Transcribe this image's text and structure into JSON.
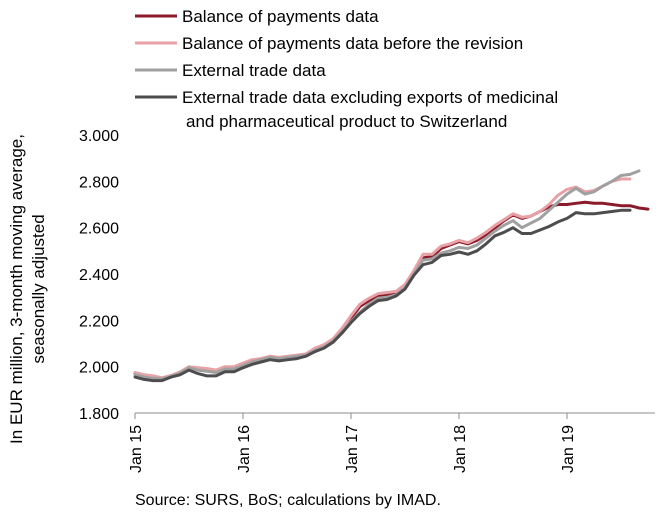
{
  "chart_data": {
    "type": "line",
    "title": "",
    "ylabel_lines": [
      "In EUR million, 3-month moving average,",
      "seasonally adjusted"
    ],
    "xlabel": "",
    "ylim": [
      1800,
      3000
    ],
    "y_ticks": [
      1800,
      2000,
      2200,
      2400,
      2600,
      2800,
      3000
    ],
    "y_tick_labels": [
      "1.800",
      "2.000",
      "2.200",
      "2.400",
      "2.600",
      "2.800",
      "3.000"
    ],
    "x_start": "2015-01",
    "x_end": "2019-10",
    "x_ticks": [
      {
        "label": "Jan 15",
        "index": 0
      },
      {
        "label": "Jan 16",
        "index": 12
      },
      {
        "label": "Jan 17",
        "index": 24
      },
      {
        "label": "Jan 18",
        "index": 36
      },
      {
        "label": "Jan 19",
        "index": 48
      }
    ],
    "grid": "horizontal",
    "legend_position": "top",
    "source": "Source: SURS, BoS; calculations by IMAD.",
    "series": [
      {
        "name": "Balance of payments data",
        "color": "#8B1A2B",
        "values": [
          1970,
          1960,
          1955,
          1950,
          1960,
          1975,
          1995,
          1990,
          1985,
          1980,
          1995,
          1995,
          2010,
          2025,
          2030,
          2040,
          2035,
          2040,
          2045,
          2050,
          2075,
          2090,
          2115,
          2160,
          2210,
          2260,
          2285,
          2305,
          2310,
          2315,
          2340,
          2400,
          2470,
          2475,
          2510,
          2525,
          2540,
          2530,
          2545,
          2570,
          2600,
          2630,
          2655,
          2640,
          2650,
          2670,
          2690,
          2700,
          2700,
          2705,
          2710,
          2705,
          2705,
          2700,
          2695,
          2695,
          2685,
          2680
        ]
      },
      {
        "name": "Balance of payments data before the revision",
        "color": "#E8A2A5",
        "values": [
          1975,
          1965,
          1960,
          1952,
          1962,
          1977,
          2000,
          1995,
          1992,
          1985,
          2000,
          2000,
          2015,
          2030,
          2035,
          2045,
          2040,
          2045,
          2050,
          2055,
          2080,
          2095,
          2120,
          2165,
          2220,
          2270,
          2295,
          2315,
          2320,
          2325,
          2355,
          2415,
          2485,
          2485,
          2520,
          2530,
          2545,
          2535,
          2555,
          2580,
          2610,
          2635,
          2660,
          2645,
          2650,
          2670,
          2700,
          2740,
          2765,
          2775,
          2755,
          2760,
          2780,
          2800,
          2810,
          2810
        ]
      },
      {
        "name": "External trade data",
        "color": "#A0A0A0",
        "values": [
          1965,
          1955,
          1950,
          1948,
          1958,
          1972,
          1995,
          1985,
          1980,
          1975,
          1990,
          1990,
          2005,
          2020,
          2030,
          2040,
          2035,
          2040,
          2045,
          2050,
          2070,
          2085,
          2110,
          2150,
          2195,
          2235,
          2270,
          2295,
          2300,
          2310,
          2340,
          2400,
          2460,
          2465,
          2490,
          2500,
          2515,
          2510,
          2525,
          2555,
          2585,
          2610,
          2630,
          2600,
          2620,
          2640,
          2675,
          2710,
          2745,
          2770,
          2745,
          2755,
          2780,
          2800,
          2825,
          2830,
          2845
        ]
      },
      {
        "name": "External trade data excluding exports of medicinal and pharmaceutical product to Switzerland",
        "color": "#4D4D4F",
        "values": [
          1955,
          1945,
          1940,
          1940,
          1955,
          1965,
          1985,
          1970,
          1960,
          1960,
          1978,
          1978,
          1995,
          2010,
          2020,
          2030,
          2025,
          2030,
          2035,
          2045,
          2065,
          2080,
          2105,
          2145,
          2190,
          2230,
          2260,
          2285,
          2290,
          2305,
          2335,
          2395,
          2440,
          2450,
          2480,
          2485,
          2495,
          2485,
          2500,
          2530,
          2565,
          2580,
          2600,
          2575,
          2575,
          2590,
          2605,
          2625,
          2640,
          2665,
          2660,
          2660,
          2665,
          2670,
          2675,
          2675
        ]
      }
    ]
  }
}
